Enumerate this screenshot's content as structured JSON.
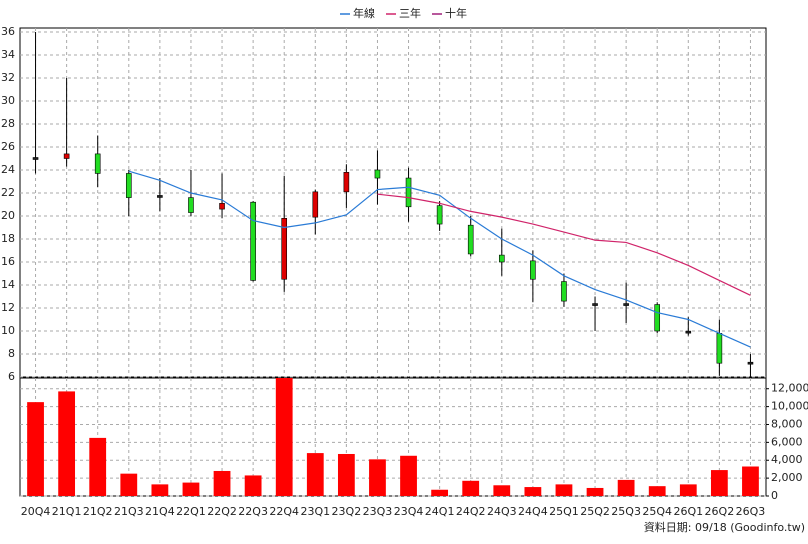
{
  "chart_data": {
    "type": "candlestick",
    "legend": "top",
    "grid": true,
    "categories": [
      "20Q4",
      "21Q1",
      "21Q2",
      "21Q3",
      "21Q4",
      "22Q1",
      "22Q2",
      "22Q3",
      "22Q4",
      "23Q1",
      "23Q2",
      "23Q3",
      "23Q4",
      "24Q1",
      "24Q2",
      "24Q3",
      "24Q4",
      "25Q1",
      "25Q2",
      "25Q3",
      "25Q4",
      "26Q1",
      "26Q2",
      "26Q3"
    ],
    "open": [
      25,
      25.0,
      25.4,
      23.7,
      21.7,
      21.6,
      20.6,
      21.2,
      14.5,
      19.9,
      22.1,
      24.0,
      23.3,
      20.9,
      19.2,
      16.6,
      16.1,
      14.3,
      12.3,
      12.3,
      12.3,
      9.9,
      9.8,
      7.2
    ],
    "high": [
      36,
      32,
      27,
      24,
      23.3,
      24,
      23.7,
      21.3,
      23.5,
      22.3,
      24.5,
      25.7,
      24.2,
      21.3,
      20,
      18.9,
      17,
      15,
      13,
      14.2,
      12.5,
      11.2,
      11,
      8
    ],
    "low": [
      23.7,
      24.3,
      22.5,
      20,
      20.4,
      20,
      19.8,
      14.3,
      13.4,
      18.4,
      20.7,
      21,
      19.5,
      18.7,
      16.5,
      14.8,
      12.5,
      12.1,
      10,
      10.7,
      9.8,
      9.6,
      6.1,
      6
    ],
    "close": [
      25,
      25.4,
      23.7,
      21.6,
      21.7,
      20.3,
      21.1,
      14.4,
      19.8,
      22.1,
      23.8,
      23.3,
      20.8,
      19.3,
      16.7,
      16.0,
      14.5,
      12.6,
      12.3,
      12.3,
      10.0,
      9.9,
      7.2,
      7.2
    ],
    "up_color": "#dd0000",
    "down_color": "#22dd22",
    "flat_color": "#222222",
    "ylim": [
      6,
      36
    ],
    "yticks": [
      6,
      8,
      10,
      12,
      14,
      16,
      18,
      20,
      22,
      24,
      26,
      28,
      30,
      32,
      34,
      36
    ],
    "series": [
      {
        "name": "年線",
        "color": "#2a7bd6",
        "values": [
          null,
          null,
          null,
          23.9,
          23.1,
          22.0,
          21.4,
          19.6,
          19.0,
          19.4,
          20.1,
          22.3,
          22.5,
          21.8,
          19.8,
          18.0,
          16.6,
          14.8,
          13.6,
          12.7,
          11.6,
          11.0,
          9.8,
          8.6
        ]
      },
      {
        "name": "三年",
        "color": "#d0246a",
        "values": [
          null,
          null,
          null,
          null,
          null,
          null,
          null,
          null,
          null,
          null,
          null,
          21.9,
          21.6,
          21.1,
          20.4,
          19.9,
          19.3,
          18.6,
          17.9,
          17.7,
          16.8,
          15.7,
          14.4,
          13.1
        ]
      },
      {
        "name": "十年",
        "color": "#a0207a",
        "values": [
          null,
          null,
          null,
          null,
          null,
          null,
          null,
          null,
          null,
          null,
          null,
          null,
          null,
          null,
          null,
          null,
          null,
          null,
          null,
          null,
          null,
          null,
          null,
          null
        ]
      }
    ],
    "volume": {
      "color": "#ff0000",
      "values": [
        10500,
        11700,
        6500,
        2500,
        1300,
        1500,
        2800,
        2300,
        13200,
        4800,
        4700,
        4100,
        4500,
        700,
        1700,
        1200,
        1000,
        1300,
        900,
        1800,
        1100,
        1300,
        2900,
        3300
      ],
      "ylim": [
        0,
        13200
      ],
      "yticks": [
        0,
        {
          "value": 2000,
          "label": "2,000"
        },
        {
          "value": 4000,
          "label": "4,000"
        },
        {
          "value": 6000,
          "label": "6,000"
        },
        {
          "value": 8000,
          "label": "8,000"
        },
        {
          "value": 10000,
          "label": "10,000"
        },
        {
          "value": 12000,
          "label": "12,000"
        }
      ]
    },
    "footer": "資料日期: 09/18  (Goodinfo.tw)"
  }
}
